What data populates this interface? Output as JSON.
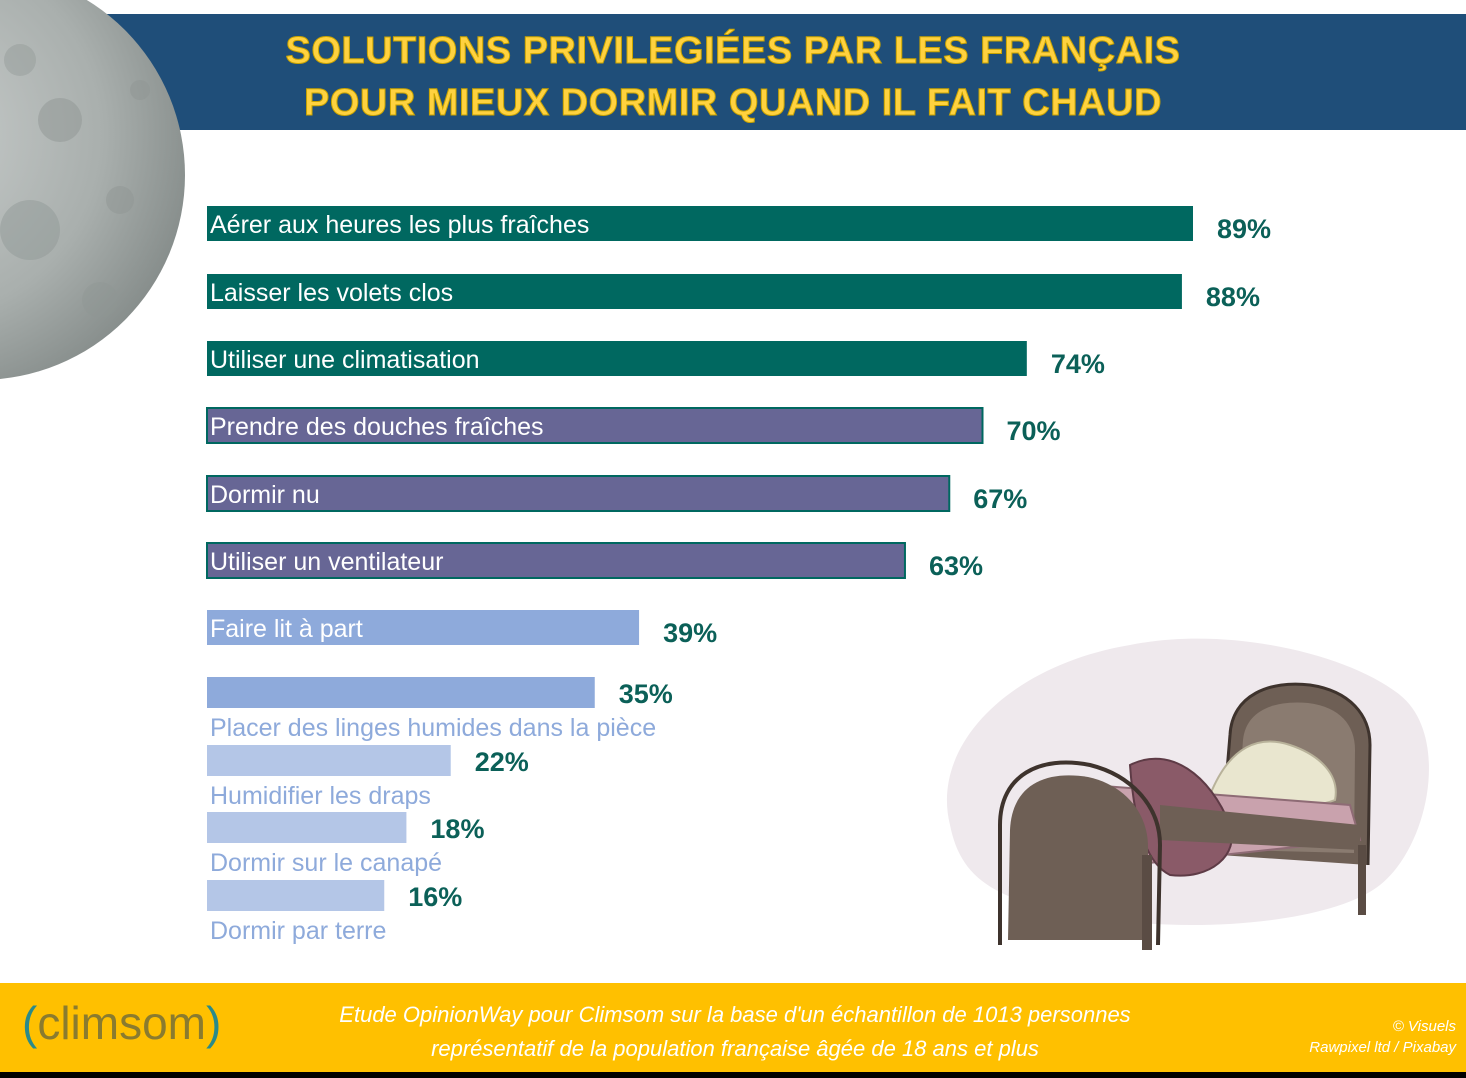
{
  "header": {
    "title_line1": "SOLUTIONS PRIVILEGIÉES PAR LES FRANÇAIS",
    "title_line2": "POUR MIEUX DORMIR QUAND IL FAIT CHAUD"
  },
  "chart_data": {
    "type": "bar",
    "orientation": "horizontal",
    "title": "SOLUTIONS PRIVILEGIÉES PAR LES FRANÇAIS POUR MIEUX DORMIR QUAND IL FAIT CHAUD",
    "xlabel": "",
    "ylabel": "",
    "xlim": [
      0,
      100
    ],
    "unit": "%",
    "categories": [
      "Aérer aux heures les plus fraîches",
      "Laisser les volets clos",
      "Utiliser une climatisation",
      "Prendre des douches fraîches",
      "Dormir nu",
      "Utiliser un ventilateur",
      "Faire lit à part",
      "Placer des linges humides dans la pièce",
      "Humidifier les draps",
      "Dormir sur le canapé",
      "Dormir par terre"
    ],
    "values": [
      89,
      88,
      74,
      70,
      67,
      63,
      39,
      35,
      22,
      18,
      16
    ],
    "value_labels": [
      "89%",
      "88%",
      "74%",
      "70%",
      "67%",
      "63%",
      "39%",
      "35%",
      "22%",
      "18%",
      "16%"
    ],
    "colors": [
      "#006860",
      "#006860",
      "#006860",
      "#676695",
      "#676695",
      "#676695",
      "#8eaadb",
      "#8eaadb",
      "#b4c6e7",
      "#b4c6e7",
      "#b4c6e7"
    ],
    "label_color": "#0b6058"
  },
  "footer": {
    "logo": "climsom",
    "source_line1": "Etude OpinionWay pour Climsom sur la base d'un échantillon de 1013 personnes",
    "source_line2": "représentatif de la population française âgée de 18 ans et plus",
    "credit_line1": "© Visuels",
    "credit_line2": "Rawpixel ltd / Pixabay"
  }
}
